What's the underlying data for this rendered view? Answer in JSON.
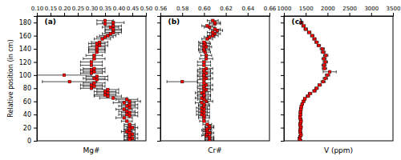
{
  "chart_data": [
    {
      "type": "scatter",
      "title": "(a)",
      "xlabel": "Mg#",
      "ylabel": "Relative position (in cm)",
      "color": "#FF0000",
      "marker": "square",
      "xlim": [
        0.1,
        0.5
      ],
      "xticks": [
        {
          "value": 0.1,
          "label": "0.10"
        },
        {
          "value": 0.15,
          "label": "0.15"
        },
        {
          "value": 0.2,
          "label": "0.20"
        },
        {
          "value": 0.25,
          "label": "0.25"
        },
        {
          "value": 0.3,
          "label": "0.30"
        },
        {
          "value": 0.35,
          "label": "0.35"
        },
        {
          "value": 0.4,
          "label": "0.40"
        },
        {
          "value": 0.45,
          "label": "0.45"
        },
        {
          "value": 0.5,
          "label": "0.50"
        }
      ],
      "ylim": [
        0,
        190
      ],
      "yticks": [
        0,
        20,
        40,
        60,
        80,
        100,
        120,
        140,
        160,
        180
      ],
      "values": [
        0,
        2,
        4,
        6,
        8,
        10,
        12,
        14,
        16,
        18,
        20,
        22,
        25,
        30,
        35,
        38,
        40,
        43,
        45,
        48,
        50,
        53,
        55,
        58,
        60,
        63,
        65,
        68,
        70,
        73,
        75,
        78,
        80,
        83,
        85,
        88,
        90,
        93,
        95,
        98,
        100,
        103,
        105,
        108,
        110,
        115,
        120,
        125,
        130,
        135,
        138,
        140,
        143,
        145,
        148,
        150,
        155,
        158,
        160,
        163,
        165,
        168,
        170,
        173,
        175,
        178,
        180,
        183
      ],
      "x": [
        0.44,
        0.44,
        0.45,
        0.44,
        0.44,
        0.45,
        0.44,
        0.43,
        0.44,
        0.44,
        0.45,
        0.44,
        0.44,
        0.43,
        0.42,
        0.44,
        0.43,
        0.44,
        0.43,
        0.42,
        0.44,
        0.43,
        0.44,
        0.42,
        0.44,
        0.43,
        0.38,
        0.36,
        0.35,
        0.36,
        0.35,
        0.36,
        0.3,
        0.31,
        0.3,
        0.31,
        0.22,
        0.32,
        0.31,
        0.32,
        0.2,
        0.3,
        0.31,
        0.3,
        0.31,
        0.3,
        0.3,
        0.31,
        0.31,
        0.32,
        0.32,
        0.32,
        0.32,
        0.33,
        0.32,
        0.33,
        0.34,
        0.35,
        0.36,
        0.37,
        0.38,
        0.38,
        0.38,
        0.37,
        0.38,
        0.35,
        0.38,
        0.35
      ],
      "xerr": [
        0.02,
        0.02,
        0.02,
        0.02,
        0.02,
        0.02,
        0.02,
        0.02,
        0.02,
        0.02,
        0.02,
        0.02,
        0.02,
        0.02,
        0.03,
        0.03,
        0.03,
        0.03,
        0.03,
        0.03,
        0.03,
        0.03,
        0.03,
        0.04,
        0.04,
        0.04,
        0.05,
        0.05,
        0.04,
        0.04,
        0.04,
        0.04,
        0.04,
        0.04,
        0.04,
        0.04,
        0.1,
        0.04,
        0.04,
        0.04,
        0.1,
        0.04,
        0.04,
        0.04,
        0.04,
        0.04,
        0.04,
        0.04,
        0.03,
        0.03,
        0.03,
        0.03,
        0.03,
        0.03,
        0.03,
        0.03,
        0.03,
        0.03,
        0.03,
        0.03,
        0.03,
        0.03,
        0.03,
        0.03,
        0.03,
        0.03,
        0.04,
        0.03
      ]
    },
    {
      "type": "scatter",
      "title": "(b)",
      "xlabel": "Cr#",
      "tick_labels": "x",
      "color": "#FF0000",
      "marker": "square",
      "xlim": [
        0.56,
        0.66
      ],
      "xticks": [
        {
          "value": 0.56,
          "label": "0.56"
        },
        {
          "value": 0.58,
          "label": "0.58"
        },
        {
          "value": 0.6,
          "label": "0.60"
        },
        {
          "value": 0.62,
          "label": "0.62"
        },
        {
          "value": 0.64,
          "label": "0.64"
        },
        {
          "value": 0.66,
          "label": "0.66"
        }
      ],
      "ylim": [
        0,
        190
      ],
      "yticks": [
        0,
        20,
        40,
        60,
        80,
        100,
        120,
        140,
        160,
        180
      ],
      "values": [
        0,
        2,
        4,
        6,
        8,
        10,
        12,
        14,
        16,
        18,
        20,
        22,
        25,
        30,
        35,
        38,
        40,
        43,
        45,
        48,
        50,
        53,
        55,
        58,
        60,
        63,
        65,
        68,
        70,
        73,
        75,
        78,
        80,
        83,
        85,
        88,
        90,
        93,
        95,
        98,
        100,
        103,
        105,
        108,
        110,
        115,
        120,
        125,
        130,
        135,
        138,
        140,
        143,
        145,
        148,
        150,
        155,
        158,
        160,
        163,
        165,
        168,
        170,
        173,
        175,
        178,
        180,
        183
      ],
      "x": [
        0.605,
        0.605,
        0.605,
        0.605,
        0.602,
        0.603,
        0.605,
        0.603,
        0.602,
        0.603,
        0.605,
        0.605,
        0.603,
        0.6,
        0.6,
        0.6,
        0.598,
        0.6,
        0.598,
        0.6,
        0.598,
        0.6,
        0.6,
        0.598,
        0.602,
        0.6,
        0.598,
        0.6,
        0.6,
        0.598,
        0.6,
        0.602,
        0.6,
        0.6,
        0.602,
        0.6,
        0.58,
        0.6,
        0.602,
        0.6,
        0.6,
        0.602,
        0.6,
        0.6,
        0.602,
        0.6,
        0.6,
        0.602,
        0.602,
        0.601,
        0.6,
        0.6,
        0.602,
        0.6,
        0.601,
        0.6,
        0.603,
        0.605,
        0.608,
        0.61,
        0.608,
        0.612,
        0.61,
        0.605,
        0.603,
        0.61,
        0.61,
        0.608
      ],
      "xerr": [
        0.004,
        0.004,
        0.004,
        0.004,
        0.004,
        0.004,
        0.004,
        0.004,
        0.004,
        0.004,
        0.004,
        0.004,
        0.004,
        0.004,
        0.005,
        0.005,
        0.005,
        0.005,
        0.005,
        0.005,
        0.005,
        0.005,
        0.005,
        0.006,
        0.006,
        0.006,
        0.006,
        0.006,
        0.006,
        0.006,
        0.006,
        0.006,
        0.006,
        0.006,
        0.006,
        0.006,
        0.014,
        0.006,
        0.006,
        0.006,
        0.006,
        0.006,
        0.006,
        0.006,
        0.006,
        0.006,
        0.006,
        0.006,
        0.005,
        0.005,
        0.005,
        0.005,
        0.005,
        0.005,
        0.005,
        0.005,
        0.005,
        0.005,
        0.005,
        0.005,
        0.005,
        0.005,
        0.005,
        0.005,
        0.005,
        0.005,
        0.005,
        0.005
      ]
    },
    {
      "type": "scatter",
      "title": "(c)",
      "xlabel": "V (ppm)",
      "tick_labels": "x",
      "color": "#FF0000",
      "marker": "square",
      "xlim": [
        1000,
        3500
      ],
      "xticks": [
        1000,
        1500,
        2000,
        2500,
        3000,
        3500
      ],
      "ylim": [
        0,
        190
      ],
      "yticks": [
        0,
        20,
        40,
        60,
        80,
        100,
        120,
        140,
        160,
        180
      ],
      "values": [
        0,
        3,
        6,
        9,
        12,
        15,
        18,
        21,
        24,
        27,
        30,
        33,
        36,
        40,
        44,
        48,
        52,
        56,
        60,
        64,
        68,
        72,
        76,
        80,
        85,
        90,
        95,
        100,
        105,
        110,
        115,
        120,
        125,
        130,
        135,
        140,
        145,
        150,
        155,
        160,
        165,
        170,
        175,
        180
      ],
      "x": [
        1380,
        1360,
        1370,
        1390,
        1380,
        1370,
        1380,
        1390,
        1370,
        1380,
        1390,
        1380,
        1370,
        1380,
        1380,
        1390,
        1400,
        1420,
        1450,
        1480,
        1550,
        1600,
        1700,
        1750,
        1820,
        1900,
        1950,
        2000,
        2050,
        1930,
        1920,
        1950,
        1920,
        1960,
        1900,
        1880,
        1800,
        1750,
        1700,
        1650,
        1580,
        1500,
        1450,
        1400
      ],
      "xerr": [
        30,
        30,
        30,
        30,
        30,
        30,
        30,
        30,
        30,
        30,
        30,
        30,
        30,
        30,
        30,
        30,
        30,
        30,
        30,
        30,
        40,
        40,
        40,
        40,
        40,
        50,
        50,
        50,
        150,
        50,
        50,
        50,
        50,
        50,
        50,
        50,
        40,
        40,
        40,
        40,
        40,
        40,
        40,
        40
      ]
    }
  ]
}
